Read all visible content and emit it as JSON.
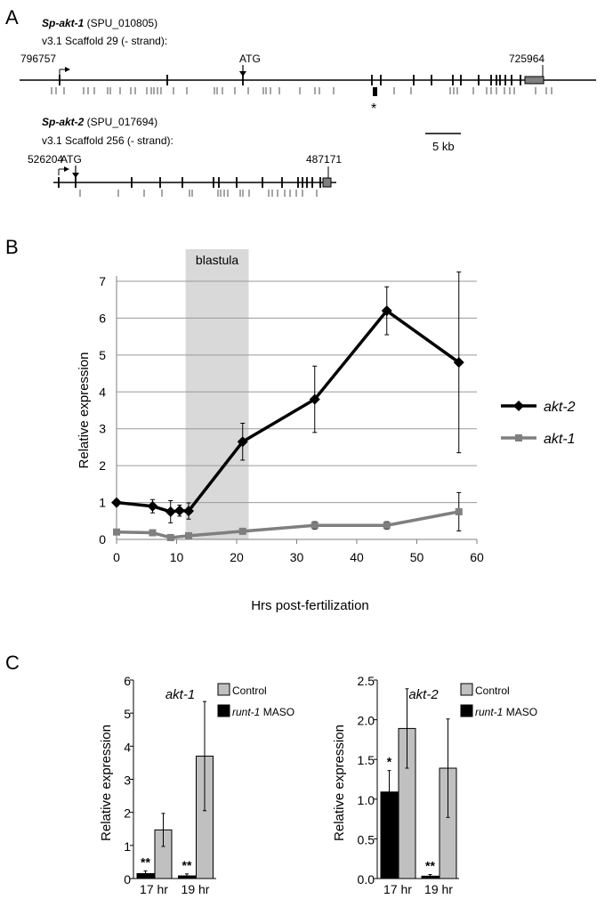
{
  "panels": {
    "a": "A",
    "b": "B",
    "c": "C"
  },
  "gene_diagram": {
    "gene1": {
      "name": "Sp-akt-1",
      "id": " (SPU_010805)",
      "scaffold": "v3.1 Scaffold 29 (- strand):",
      "start": "796757",
      "end": "725964",
      "atg": "ATG",
      "marker": "*"
    },
    "gene2": {
      "name": "Sp-akt-2",
      "id": " (SPU_017694)",
      "scaffold": "v3.1 Scaffold 256 (- strand):",
      "start": "526204",
      "end": "487171",
      "atg": "ATG"
    },
    "scalebar": "5 kb"
  },
  "colors": {
    "akt2": "#000000",
    "akt1": "#7f7f7f",
    "control": "#c0c0c0",
    "maso": "#000000",
    "blastula": "#d9d9d9"
  },
  "chart_data": [
    {
      "type": "line",
      "xlabel": "Hrs post-fertilization",
      "ylabel": "Relative expression",
      "xlim": [
        0,
        60
      ],
      "ylim": [
        0,
        7
      ],
      "xticks": [
        0,
        10,
        20,
        30,
        40,
        50,
        60
      ],
      "yticks": [
        0,
        1,
        2,
        3,
        4,
        5,
        6,
        7
      ],
      "grid": true,
      "legend": "right",
      "annotation": {
        "label": "blastula",
        "x_range": [
          11.5,
          22
        ]
      },
      "series": [
        {
          "name": "akt-2",
          "marker": "diamond",
          "x": [
            0,
            6,
            9,
            10.5,
            12,
            21,
            33,
            45,
            57
          ],
          "y": [
            1.0,
            0.9,
            0.75,
            0.78,
            0.77,
            2.65,
            3.8,
            6.2,
            4.8
          ],
          "err": [
            0.08,
            0.18,
            0.3,
            0.15,
            0.22,
            0.5,
            0.9,
            0.65,
            2.45
          ]
        },
        {
          "name": "akt-1",
          "marker": "square",
          "x": [
            0,
            6,
            9,
            12,
            21,
            33,
            45,
            57
          ],
          "y": [
            0.2,
            0.18,
            0.05,
            0.1,
            0.22,
            0.38,
            0.38,
            0.75
          ],
          "err": [
            0.02,
            0.04,
            0.02,
            0.02,
            0.06,
            0.1,
            0.1,
            0.52
          ]
        }
      ]
    },
    {
      "type": "bar",
      "title": "akt-1",
      "ylabel": "Relative expression",
      "categories": [
        "17 hr",
        "19 hr"
      ],
      "ylim": [
        0,
        6
      ],
      "yticks": [
        "0",
        "1",
        "2",
        "3",
        "4",
        "5",
        "6"
      ],
      "legend": "top-right",
      "series": [
        {
          "name": "runt-1 MASO",
          "values": [
            0.15,
            0.08
          ],
          "err": [
            0.08,
            0.06
          ]
        },
        {
          "name": "Control",
          "values": [
            1.47,
            3.7
          ],
          "err": [
            0.5,
            1.65
          ]
        }
      ],
      "significance": [
        "**",
        "**"
      ]
    },
    {
      "type": "bar",
      "title": "akt-2",
      "ylabel": "Relative expression",
      "categories": [
        "17 hr",
        "19 hr"
      ],
      "ylim": [
        0,
        2.5
      ],
      "yticks": [
        "0.0",
        "0.5",
        "1.0",
        "1.5",
        "2.0",
        "2.5"
      ],
      "legend": "top-right",
      "series": [
        {
          "name": "runt-1 MASO",
          "values": [
            1.09,
            0.03
          ],
          "err": [
            0.27,
            0.02
          ]
        },
        {
          "name": "Control",
          "values": [
            1.89,
            1.39
          ],
          "err": [
            0.5,
            0.62
          ]
        }
      ],
      "significance": [
        "*",
        "**"
      ]
    }
  ]
}
